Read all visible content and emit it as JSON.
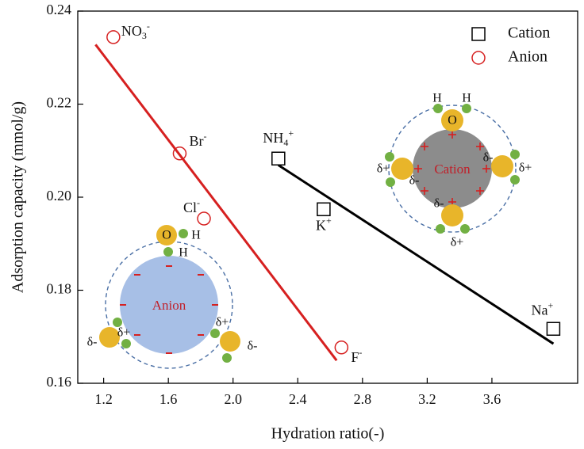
{
  "chart_data": {
    "type": "scatter",
    "xlabel": "Hydration ratio(-)",
    "ylabel": "Adsorption capacity (mmol/g)",
    "xlim": [
      1.04,
      4.13
    ],
    "ylim": [
      0.16,
      0.24
    ],
    "xticks": [
      1.2,
      1.6,
      {
        "value": 2,
        "label": "2.0"
      },
      2.4,
      2.8,
      3.2,
      3.6
    ],
    "yticks": [
      0.16,
      0.18,
      {
        "value": 0.2,
        "label": "0.20"
      },
      0.22,
      0.24
    ],
    "legend": "upper right",
    "series": [
      {
        "name": "Cation",
        "color": "#000000",
        "marker": "square",
        "x": [
          2.28,
          2.56,
          3.98
        ],
        "values": [
          0.2083,
          0.1974,
          0.1717
        ],
        "point_labels": [
          {
            "text": "NH",
            "sub": "4",
            "sup": "+"
          },
          {
            "text": "K",
            "sup": "+"
          },
          {
            "text": "Na",
            "sup": "+"
          }
        ]
      },
      {
        "name": "Anion",
        "color": "#d62020",
        "marker": "circle",
        "x": [
          1.26,
          1.67,
          1.82,
          2.67
        ],
        "values": [
          0.2344,
          0.2094,
          0.1954,
          0.1677
        ],
        "point_labels": [
          {
            "text": "NO",
            "sub": "3",
            "sup": "-"
          },
          {
            "text": "Br",
            "sup": "-"
          },
          {
            "text": "Cl",
            "sup": "-"
          },
          {
            "text": "F",
            "sup": "-"
          }
        ]
      }
    ],
    "fit_lines": [
      {
        "color": "#d62020",
        "x": [
          1.15,
          2.64
        ],
        "values": [
          0.2328,
          0.1649
        ]
      },
      {
        "color": "#000000",
        "x": [
          2.28,
          3.98
        ],
        "values": [
          0.2069,
          0.1685
        ]
      }
    ],
    "insets": [
      {
        "center_label": "Anion",
        "texts": [
          "O",
          "H",
          "H",
          "δ+",
          "δ-",
          "δ+",
          "δ-"
        ]
      },
      {
        "center_label": "Cation",
        "texts": [
          "H",
          "H",
          "O",
          "δ+",
          "δ-",
          "δ-",
          "δ+",
          "δ-",
          "δ+"
        ]
      }
    ]
  }
}
